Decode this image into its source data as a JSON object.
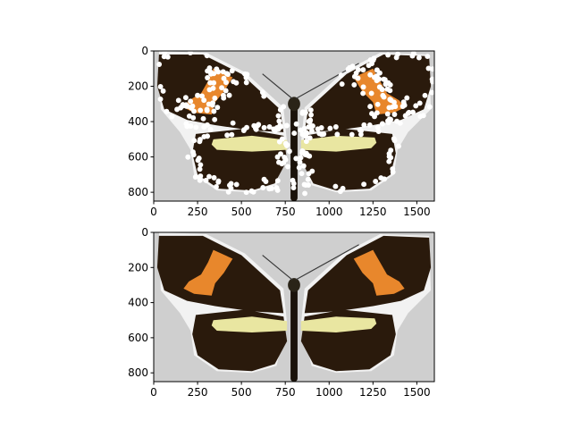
{
  "chart_data": [
    {
      "type": "image",
      "title": "",
      "xlabel": "",
      "ylabel": "",
      "xlim": [
        0,
        1600
      ],
      "ylim": [
        850,
        0
      ],
      "xticks": [
        "0",
        "250",
        "500",
        "750",
        "1000",
        "1250",
        "1500"
      ],
      "yticks": [
        "0",
        "200",
        "400",
        "600",
        "800"
      ],
      "image": "butterfly-with-landmark-points",
      "overlay_points_color": "#ffffff",
      "overlay_points_count": 320,
      "colors": {
        "background": "#cfcfcf",
        "wing": "#2a1a0c",
        "orange_band": "#e8872c",
        "yellow_band": "#e9e6a1"
      }
    },
    {
      "type": "image",
      "title": "",
      "xlabel": "",
      "ylabel": "",
      "xlim": [
        0,
        1600
      ],
      "ylim": [
        850,
        0
      ],
      "xticks": [
        "0",
        "250",
        "500",
        "750",
        "1000",
        "1250",
        "1500"
      ],
      "yticks": [
        "0",
        "200",
        "400",
        "600",
        "800"
      ],
      "image": "butterfly",
      "colors": {
        "background": "#cfcfcf",
        "wing": "#2a1a0c",
        "orange_band": "#e8872c",
        "yellow_band": "#e9e6a1"
      }
    }
  ]
}
